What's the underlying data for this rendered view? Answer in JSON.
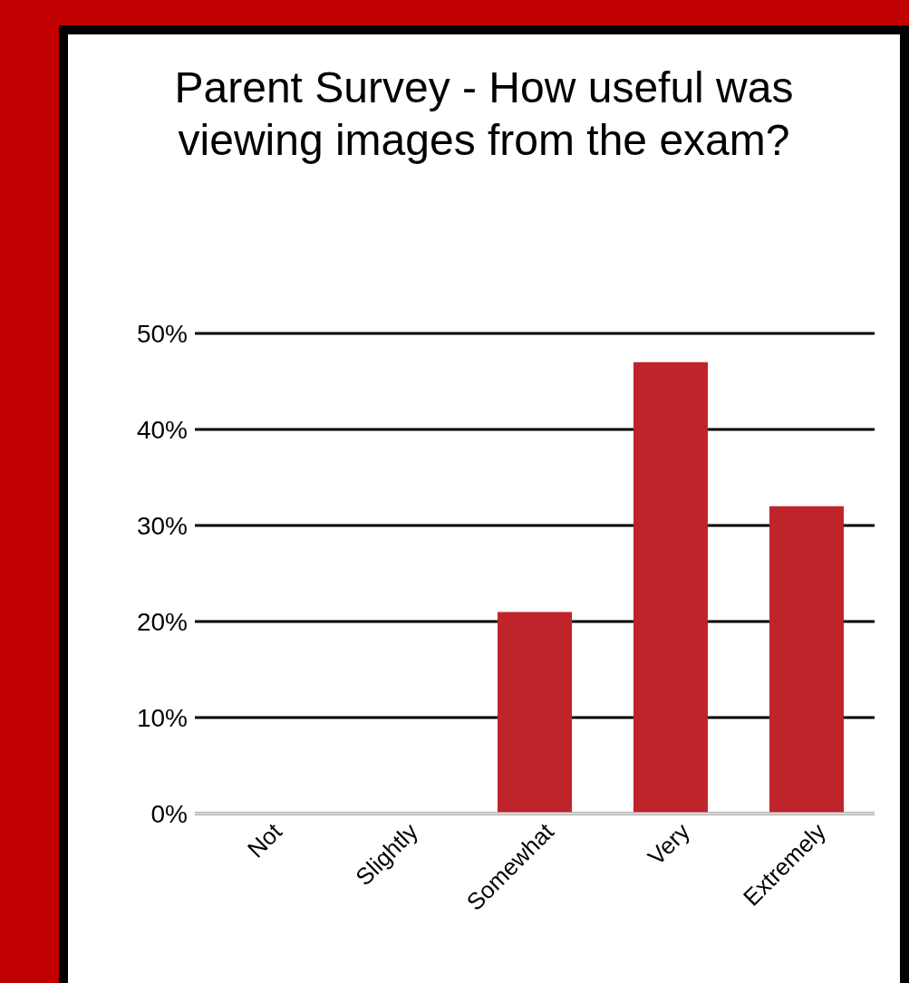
{
  "chart_data": {
    "type": "bar",
    "title": "Parent Survey - How useful was viewing images from the exam?",
    "categories": [
      "Not",
      "Slightly",
      "Somewhat",
      "Very",
      "Extremely"
    ],
    "values": [
      0,
      0,
      21,
      47,
      32
    ],
    "color": "#c0242b",
    "ylim": [
      0,
      50
    ],
    "yticks": [
      {
        "value": 0,
        "label": "0%"
      },
      {
        "value": 10,
        "label": "10%"
      },
      {
        "value": 20,
        "label": "20%"
      },
      {
        "value": 30,
        "label": "30%"
      },
      {
        "value": 40,
        "label": "40%"
      },
      {
        "value": 50,
        "label": "50%"
      }
    ],
    "grid": "y"
  }
}
